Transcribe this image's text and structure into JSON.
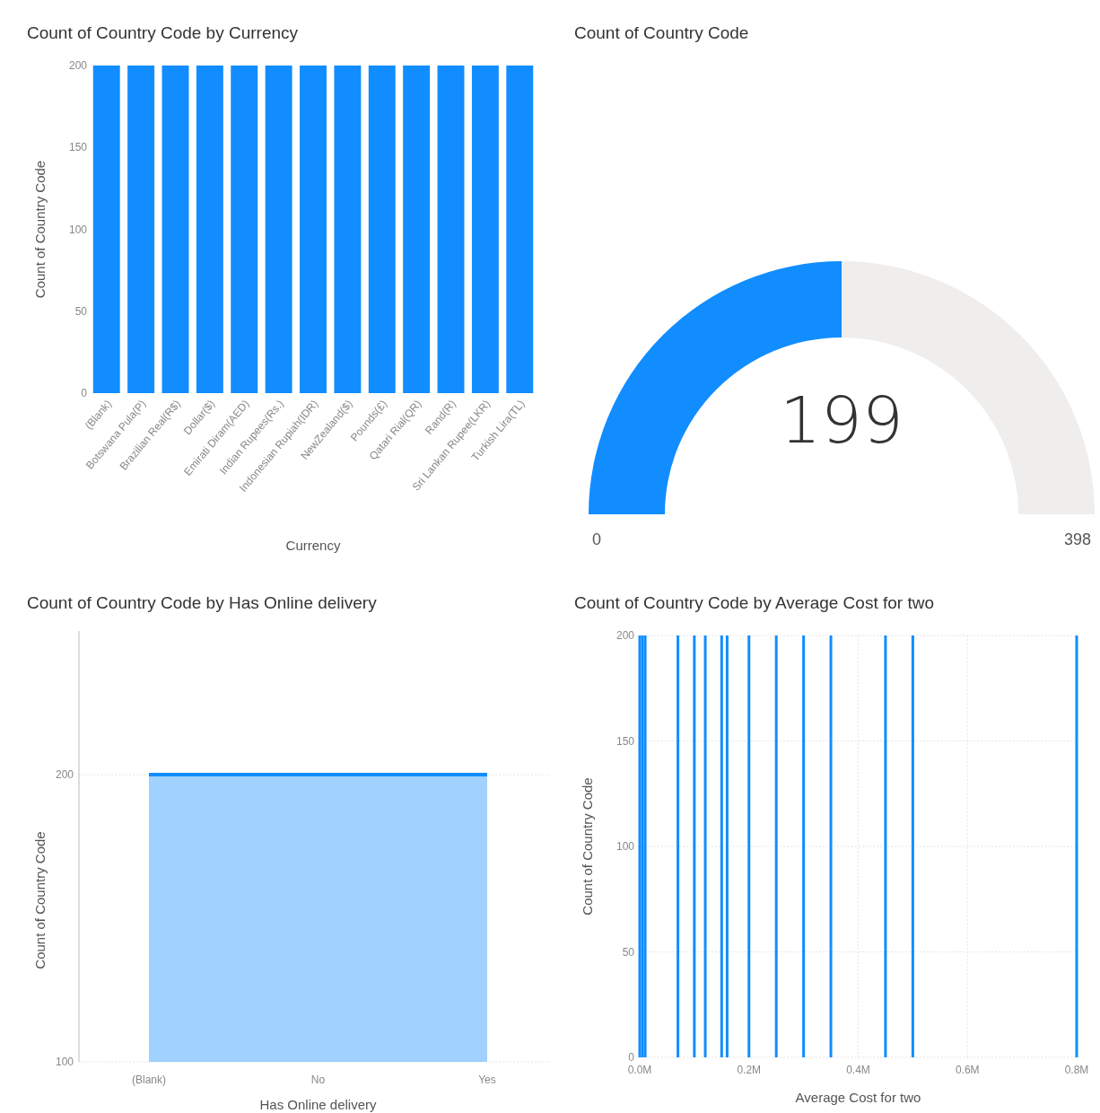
{
  "chart_data": [
    {
      "type": "bar",
      "title": "Count of Country Code by Currency",
      "xlabel": "Currency",
      "ylabel": "Count of Country Code",
      "categories": [
        "(Blank)",
        "Botswana Pula(P)",
        "Brazilian Real(R$)",
        "Dollar($)",
        "Emirati Diram(AED)",
        "Indian Rupees(Rs.)",
        "Indonesian Rupiah(IDR)",
        "NewZealand($)",
        "Pounds(£)",
        "Qatari Rial(QR)",
        "Rand(R)",
        "Sri Lankan Rupee(LKR)",
        "Turkish Lira(TL)"
      ],
      "values": [
        200,
        200,
        200,
        200,
        200,
        200,
        200,
        200,
        200,
        200,
        200,
        200,
        200
      ],
      "color": "#118dff",
      "ylim": [
        0,
        200
      ],
      "yticks": [
        0,
        50,
        100,
        150,
        200
      ]
    },
    {
      "type": "donut",
      "title": "Count of Country Code",
      "categories": [
        null,
        null
      ],
      "values": [
        199,
        199
      ],
      "colors": [
        "#118dff",
        "#efeeec"
      ],
      "value_labels": [
        "199",
        null
      ],
      "annotations": [
        "0",
        "398"
      ]
    },
    {
      "type": "area",
      "title": "Count of Country Code by Has Online delivery",
      "xlabel": "Has Online delivery",
      "ylabel": "Count of Country Code",
      "categories": [
        "(Blank)",
        "No",
        "Yes"
      ],
      "values": [
        200,
        200,
        200
      ],
      "color": "#118dff",
      "ylim": [
        100,
        250
      ],
      "yticks": [
        100,
        200
      ],
      "grid": "y"
    },
    {
      "type": "bar",
      "title": "Count of Country Code by Average Cost for two",
      "xlabel": "Average Cost for two",
      "ylabel": "Count of Country Code",
      "x": [
        0,
        5000,
        10000,
        70000,
        100000,
        120000,
        150000,
        160000,
        200000,
        250000,
        300000,
        350000,
        450000,
        500000,
        800000
      ],
      "values": [
        200,
        200,
        200,
        200,
        200,
        200,
        200,
        200,
        200,
        200,
        200,
        200,
        200,
        200,
        200
      ],
      "color": "#118dff",
      "xlim": [
        0,
        800000
      ],
      "xticks": [
        {
          "value": 0,
          "label": "0.0M"
        },
        {
          "value": 200000,
          "label": "0.2M"
        },
        {
          "value": 400000,
          "label": "0.4M"
        },
        {
          "value": 600000,
          "label": "0.6M"
        },
        {
          "value": 800000,
          "label": "0.8M"
        }
      ],
      "ylim": [
        0,
        200
      ],
      "yticks": [
        0,
        50,
        100,
        150,
        200
      ],
      "grid": true
    }
  ]
}
